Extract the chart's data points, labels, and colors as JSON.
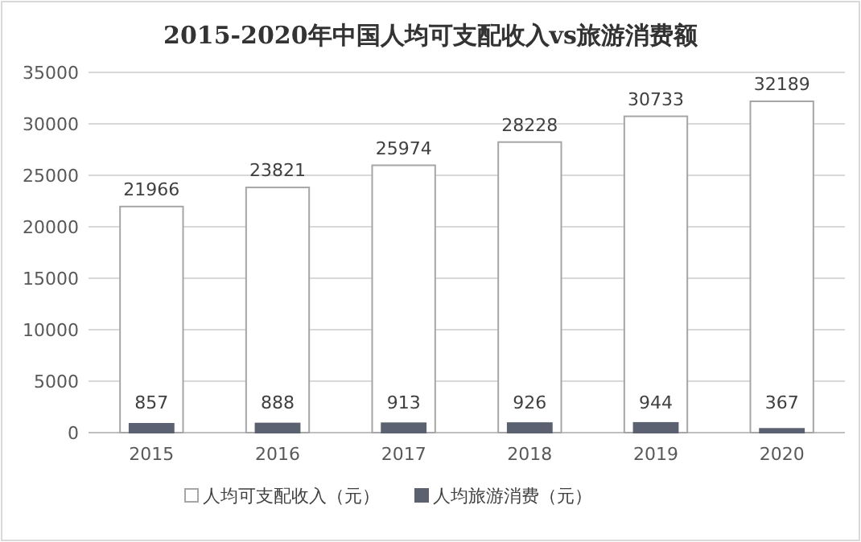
{
  "chart_data": {
    "type": "bar",
    "title": "2015-2020年中国人均可支配收入vs旅游消费额",
    "categories": [
      "2015",
      "2016",
      "2017",
      "2018",
      "2019",
      "2020"
    ],
    "series": [
      {
        "name": "人均可支配收入（元）",
        "color": "#ffffff",
        "values": [
          21966,
          23821,
          25974,
          28228,
          30733,
          32189
        ]
      },
      {
        "name": "人均旅游消费（元）",
        "color": "#5b6170",
        "values": [
          857,
          888,
          913,
          926,
          944,
          367
        ]
      }
    ],
    "ylim": [
      0,
      35000
    ],
    "yticks": [
      0,
      5000,
      10000,
      15000,
      20000,
      25000,
      30000,
      35000
    ],
    "grid": "y",
    "legend": "bottom",
    "data_labels": true
  }
}
